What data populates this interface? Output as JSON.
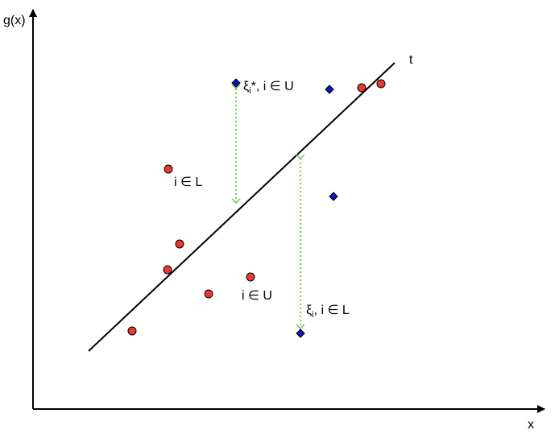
{
  "axes": {
    "x_label": "x",
    "y_label": "g(x)"
  },
  "line_label": "t",
  "annotations": {
    "xi_star_sub": "i",
    "xi_star_rest": "*, i ∈ U",
    "xi_sub": "i",
    "xi_rest": ", i ∈ L",
    "i_in_L": "i ∈ L",
    "i_in_U": "i ∈ U"
  },
  "colors": {
    "circle_fill": "#e83a32",
    "diamond_fill": "#1010c8",
    "arrow": "#7fbf5f",
    "line": "#000000"
  }
}
